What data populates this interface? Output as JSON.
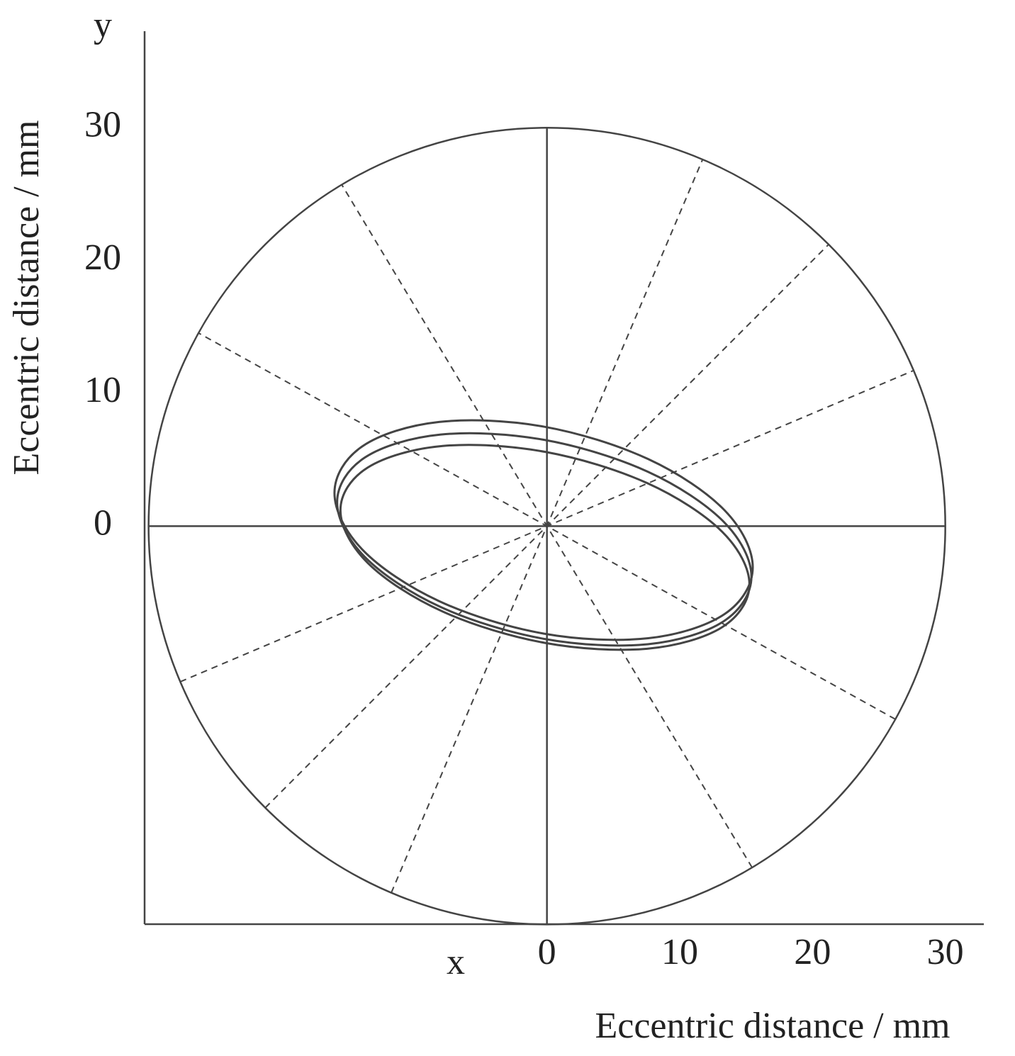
{
  "chart_data": {
    "type": "orbit",
    "x_label": "x",
    "y_label": "y",
    "x_title": "Eccentric distance / mm",
    "y_title": "Eccentric distance / mm",
    "xlim": [
      -30.3,
      32.9
    ],
    "ylim": [
      -30,
      37.3
    ],
    "xticks": [
      0,
      10,
      20,
      30
    ],
    "yticks": [
      0,
      10,
      20,
      30
    ],
    "boundary_radius": 30,
    "series": [
      {
        "color": "#444444",
        "x": [
          15.5,
          13.39,
          7.63,
          -0.25,
          -8.13,
          -13.89,
          -16.0,
          -13.89,
          -8.13,
          -0.25,
          7.63,
          13.39
        ],
        "y": [
          -3.1,
          1.18,
          5.05,
          7.5,
          7.85,
          6.02,
          2.5,
          -1.78,
          -5.65,
          -8.1,
          -8.45,
          -6.62
        ]
      },
      {
        "color": "#444444",
        "x": [
          15.4,
          13.31,
          7.6,
          -0.2,
          -8.0,
          -13.71,
          -15.8,
          -13.71,
          -8.0,
          -0.2,
          7.6,
          13.31
        ],
        "y": [
          -3.8,
          0.33,
          4.1,
          6.5,
          6.9,
          5.17,
          1.8,
          -2.33,
          -6.1,
          -8.5,
          -8.9,
          -7.17
        ]
      },
      {
        "color": "#444444",
        "x": [
          15.25,
          13.19,
          7.55,
          -0.15,
          -7.85,
          -13.49,
          -15.55,
          -13.49,
          -7.85,
          -0.15,
          7.55,
          13.19
        ],
        "y": [
          -4.4,
          -0.42,
          3.24,
          5.6,
          6.04,
          4.42,
          1.2,
          -2.78,
          -6.44,
          -8.8,
          -9.24,
          -7.62
        ]
      }
    ]
  }
}
